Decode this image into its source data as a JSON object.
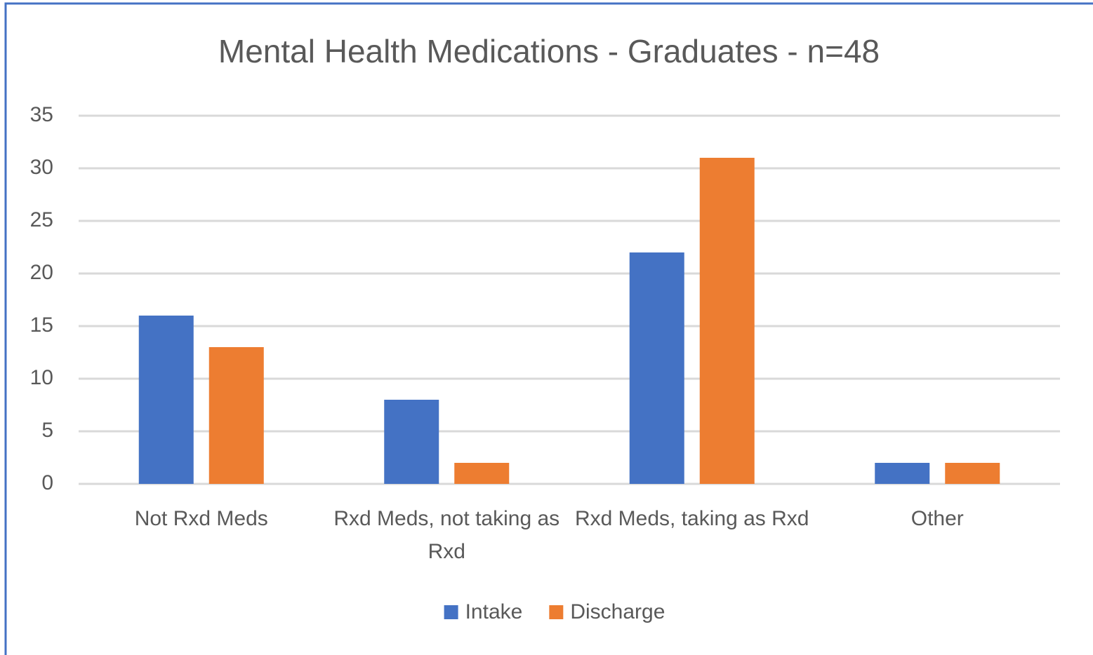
{
  "chart_data": {
    "type": "bar",
    "title": "Mental Health Medications - Graduates - n=48",
    "categories": [
      "Not Rxd Meds",
      "Rxd Meds, not taking as Rxd",
      "Rxd Meds, taking as Rxd",
      "Other"
    ],
    "series": [
      {
        "name": "Intake",
        "color": "#4472c4",
        "values": [
          16,
          8,
          22,
          2
        ]
      },
      {
        "name": "Discharge",
        "color": "#ed7d31",
        "values": [
          13,
          2,
          31,
          2
        ]
      }
    ],
    "ylim": [
      0,
      35
    ],
    "yticks": [
      0,
      5,
      10,
      15,
      20,
      25,
      30,
      35
    ],
    "grid": true,
    "legend": "bottom"
  }
}
